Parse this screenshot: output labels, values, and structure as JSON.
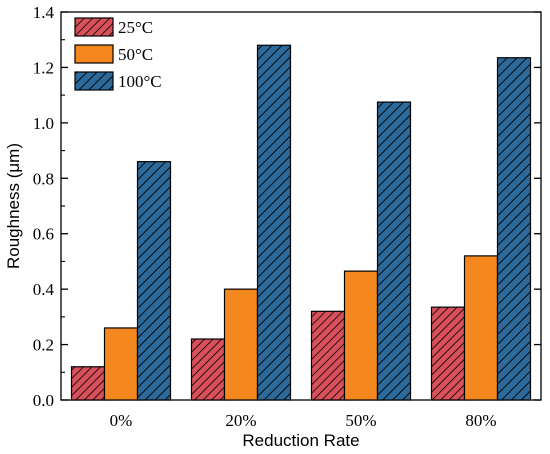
{
  "chart_data": {
    "type": "bar",
    "categories": [
      "0%",
      "20%",
      "50%",
      "80%"
    ],
    "series": [
      {
        "name": "25°C",
        "values": [
          0.12,
          0.22,
          0.32,
          0.335
        ],
        "color": "#d9505a",
        "pattern": "hatch-dense"
      },
      {
        "name": "50°C",
        "values": [
          0.26,
          0.4,
          0.465,
          0.52
        ],
        "color": "#f5871f",
        "pattern": "solid"
      },
      {
        "name": "100°C",
        "values": [
          0.86,
          1.28,
          1.075,
          1.235
        ],
        "color": "#2b6a9b",
        "pattern": "hatch"
      }
    ],
    "title": "",
    "xlabel": "Reduction Rate",
    "ylabel": "Roughness (μm)",
    "ylim": [
      0,
      1.4
    ],
    "yticks": [
      "0.0",
      "0.2",
      "0.4",
      "0.6",
      "0.8",
      "1.0",
      "1.2",
      "1.4"
    ],
    "grid": false,
    "legend_position": "top-left"
  }
}
